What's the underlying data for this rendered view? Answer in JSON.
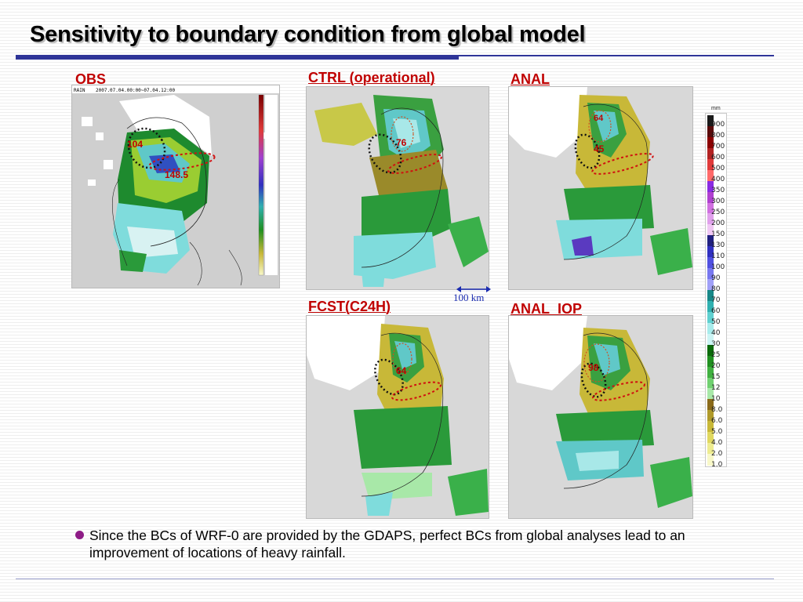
{
  "slide": {
    "title": "Sensitivity to boundary condition from global model",
    "bullet": "Since the BCs of WRF-0 are provided by the GDAPS, perfect BCs from global analyses lead to an improvement of locations of heavy rainfall."
  },
  "panels": {
    "obs": {
      "label": "OBS",
      "header_left": "RAIN",
      "header_time": "2007.07.04.00:00~07.04.12:00",
      "values": [
        "104",
        "148.5"
      ]
    },
    "ctrl": {
      "label": "CTRL (operational)",
      "values": [
        "76"
      ]
    },
    "anal": {
      "label": "ANAL",
      "values": [
        "64",
        "45"
      ]
    },
    "fcst": {
      "label": "FCST(C24H)",
      "values": [
        "64"
      ]
    },
    "anal_iop": {
      "label": "ANAL_IOP",
      "values": [
        "98"
      ]
    }
  },
  "scale_bar": {
    "label": "100 km"
  },
  "colorbar": {
    "units": "mm",
    "ticks": [
      "900",
      "800",
      "700",
      "600",
      "500",
      "400",
      "350",
      "300",
      "250",
      "200",
      "150",
      "130",
      "110",
      "100",
      "90",
      "80",
      "70",
      "60",
      "50",
      "40",
      "30",
      "25",
      "20",
      "15",
      "12",
      "10",
      "8.0",
      "6.0",
      "5.0",
      "4.0",
      "2.0",
      "1.0"
    ],
    "colors": [
      "#1a1a1a",
      "#5a0a0a",
      "#8b0000",
      "#b22222",
      "#e03a3a",
      "#ff6a6a",
      "#8a2be2",
      "#b040d0",
      "#d070e0",
      "#e0a0ec",
      "#f0c8f4",
      "#202080",
      "#3030c0",
      "#5050e0",
      "#7878f0",
      "#a0a0f8",
      "#188888",
      "#30b0b0",
      "#60d0d0",
      "#a8ecec",
      "#ccf4f4",
      "#0a6a0a",
      "#209020",
      "#40b040",
      "#70d070",
      "#a8e8a8",
      "#8a6a1a",
      "#b09a2a",
      "#c8b838",
      "#e0d860",
      "#eeec90",
      "#f8f8c8"
    ]
  }
}
